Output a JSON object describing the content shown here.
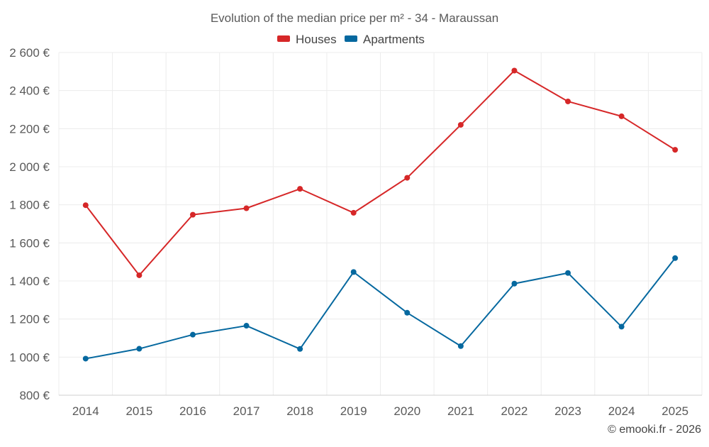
{
  "chart_data": {
    "type": "line",
    "title": "Evolution of the median price per m² - 34 - Maraussan",
    "xlabel": "",
    "ylabel": "",
    "categories": [
      "2014",
      "2015",
      "2016",
      "2017",
      "2018",
      "2019",
      "2020",
      "2021",
      "2022",
      "2023",
      "2024",
      "2025"
    ],
    "ylim": [
      800,
      2600
    ],
    "yticks": [
      800,
      1000,
      1200,
      1400,
      1600,
      1800,
      2000,
      2200,
      2400,
      2600
    ],
    "ytick_labels": [
      "800 €",
      "1 000 €",
      "1 200 €",
      "1 400 €",
      "1 600 €",
      "1 800 €",
      "2 000 €",
      "2 200 €",
      "2 400 €",
      "2 600 €"
    ],
    "grid": true,
    "legend_position": "top-center",
    "series": [
      {
        "name": "Houses",
        "color": "#d62728",
        "values": [
          1798,
          1430,
          1748,
          1782,
          1884,
          1758,
          1942,
          2220,
          2505,
          2343,
          2265,
          2089
        ]
      },
      {
        "name": "Apartments",
        "color": "#05689f",
        "values": [
          992,
          1044,
          1118,
          1165,
          1043,
          1447,
          1233,
          1058,
          1386,
          1442,
          1160,
          1520
        ]
      }
    ],
    "credit": "© emooki.fr - 2026"
  }
}
